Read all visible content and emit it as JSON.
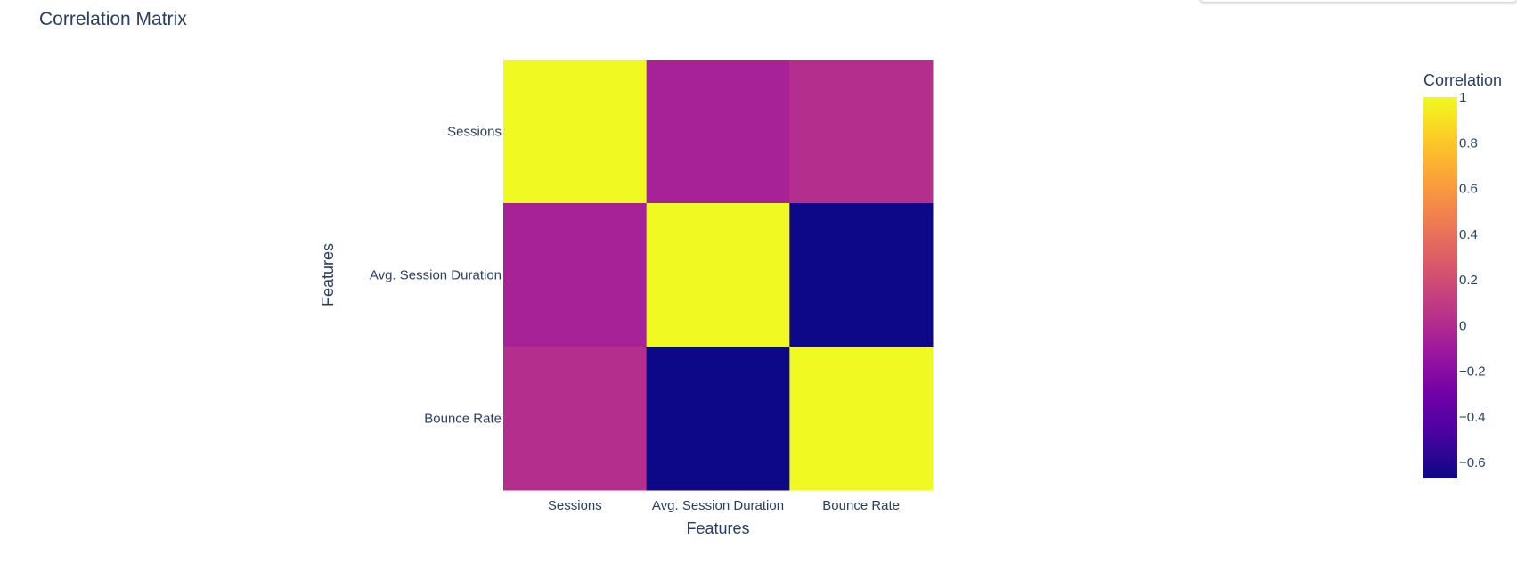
{
  "chart_data": {
    "type": "heatmap",
    "title": "Correlation Matrix",
    "xlabel": "Features",
    "ylabel": "Features",
    "x_categories": [
      "Sessions",
      "Avg. Session Duration",
      "Bounce Rate"
    ],
    "y_categories": [
      "Sessions",
      "Avg. Session Duration",
      "Bounce Rate"
    ],
    "z": [
      [
        1.0,
        -0.05,
        0.02
      ],
      [
        -0.05,
        1.0,
        -0.67
      ],
      [
        0.02,
        -0.67,
        1.0
      ]
    ],
    "zmin": -0.67,
    "zmax": 1.0,
    "colorscale": "plasma",
    "colorscale_stops": [
      "#0d0887",
      "#46039f",
      "#7201a8",
      "#9c179e",
      "#bd3786",
      "#d8576b",
      "#ed7953",
      "#fb9f3a",
      "#fdca26",
      "#f0f921"
    ],
    "colorbar": {
      "title": "Correlation",
      "tick_values": [
        1,
        0.8,
        0.6,
        0.4,
        0.2,
        0,
        -0.2,
        -0.4,
        -0.6
      ],
      "tick_labels": [
        "1",
        "0.8",
        "0.6",
        "0.4",
        "0.2",
        "0",
        "−0.2",
        "−0.4",
        "−0.6"
      ]
    }
  }
}
